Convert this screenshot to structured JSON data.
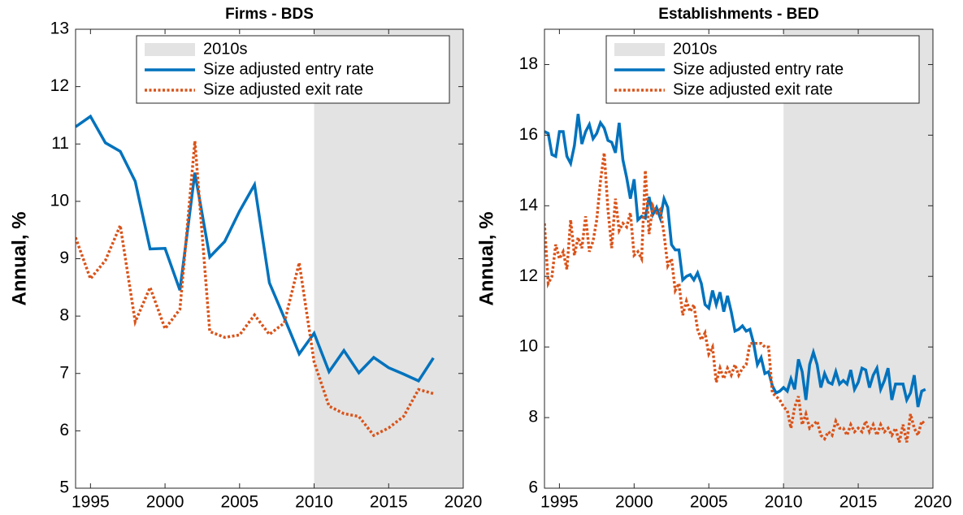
{
  "chart_data": [
    {
      "type": "line",
      "title": "Firms - BDS",
      "ylabel": "Annual, %",
      "xlim": [
        1994,
        2020
      ],
      "xticks": [
        1995,
        2000,
        2005,
        2010,
        2015,
        2020
      ],
      "ylim": [
        5,
        13
      ],
      "yticks": [
        5,
        6,
        7,
        8,
        9,
        10,
        11,
        12,
        13
      ],
      "shade": {
        "name": "2010s",
        "range": [
          2010,
          2020
        ],
        "color": "#e3e3e3"
      },
      "legend": "top-right",
      "x": [
        1994,
        1995,
        1996,
        1997,
        1998,
        1999,
        2000,
        2001,
        2002,
        2003,
        2004,
        2005,
        2006,
        2007,
        2008,
        2009,
        2010,
        2011,
        2012,
        2013,
        2014,
        2015,
        2016,
        2017,
        2018
      ],
      "series": [
        {
          "name": "Size adjusted entry rate",
          "color": "#0072bd",
          "style": "solid",
          "values": [
            11.3,
            11.48,
            11.02,
            10.87,
            10.35,
            9.17,
            9.18,
            8.45,
            10.5,
            9.03,
            9.3,
            9.83,
            10.29,
            8.58,
            7.97,
            7.34,
            7.7,
            7.03,
            7.4,
            7.01,
            7.28,
            7.1,
            6.99,
            6.87,
            7.27
          ]
        },
        {
          "name": "Size adjusted exit rate",
          "color": "#d95319",
          "style": "dotted",
          "values": [
            9.37,
            8.65,
            8.97,
            9.58,
            7.9,
            8.5,
            7.78,
            8.12,
            11.05,
            7.73,
            7.63,
            7.67,
            8.02,
            7.68,
            7.88,
            8.93,
            7.2,
            6.43,
            6.3,
            6.25,
            5.92,
            6.05,
            6.25,
            6.72,
            6.65
          ]
        }
      ]
    },
    {
      "type": "line",
      "title": "Establishments - BED",
      "ylabel": "Annual, %",
      "xlim": [
        1994,
        2020
      ],
      "xticks": [
        1995,
        2000,
        2005,
        2010,
        2015,
        2020
      ],
      "ylim": [
        6,
        19
      ],
      "yticks": [
        6,
        8,
        10,
        12,
        14,
        16,
        18
      ],
      "shade": {
        "name": "2010s",
        "range": [
          2010,
          2020
        ],
        "color": "#e3e3e3"
      },
      "legend": "top-right",
      "x": [
        1994,
        1994.25,
        1994.5,
        1994.75,
        1995,
        1995.25,
        1995.5,
        1995.75,
        1996,
        1996.25,
        1996.5,
        1996.75,
        1997,
        1997.25,
        1997.5,
        1997.75,
        1998,
        1998.25,
        1998.5,
        1998.75,
        1999,
        1999.25,
        1999.5,
        1999.75,
        2000,
        2000.25,
        2000.5,
        2000.75,
        2001,
        2001.25,
        2001.5,
        2001.75,
        2002,
        2002.25,
        2002.5,
        2002.75,
        2003,
        2003.25,
        2003.5,
        2003.75,
        2004,
        2004.25,
        2004.5,
        2004.75,
        2005,
        2005.25,
        2005.5,
        2005.75,
        2006,
        2006.25,
        2006.5,
        2006.75,
        2007,
        2007.25,
        2007.5,
        2007.75,
        2008,
        2008.25,
        2008.5,
        2008.75,
        2009,
        2009.25,
        2009.5,
        2009.75,
        2010,
        2010.25,
        2010.5,
        2010.75,
        2011,
        2011.25,
        2011.5,
        2011.75,
        2012,
        2012.25,
        2012.5,
        2012.75,
        2013,
        2013.25,
        2013.5,
        2013.75,
        2014,
        2014.25,
        2014.5,
        2014.75,
        2015,
        2015.25,
        2015.5,
        2015.75,
        2016,
        2016.25,
        2016.5,
        2016.75,
        2017,
        2017.25,
        2017.5,
        2017.75,
        2018,
        2018.25,
        2018.5,
        2018.75,
        2019,
        2019.25,
        2019.5
      ],
      "series": [
        {
          "name": "Size adjusted entry rate",
          "color": "#0072bd",
          "style": "solid",
          "values": [
            16.1,
            16.05,
            15.45,
            15.4,
            16.1,
            16.1,
            15.4,
            15.2,
            15.7,
            16.6,
            15.75,
            16.1,
            16.3,
            15.9,
            16.05,
            16.35,
            16.2,
            15.85,
            15.8,
            15.5,
            16.35,
            15.3,
            14.8,
            14.2,
            14.75,
            13.6,
            13.7,
            13.65,
            14.25,
            13.75,
            13.95,
            13.65,
            14.2,
            13.95,
            12.9,
            12.75,
            12.75,
            11.9,
            12.0,
            12.05,
            11.9,
            12.1,
            11.8,
            11.2,
            11.1,
            11.6,
            11.2,
            11.55,
            11.0,
            11.45,
            11.0,
            10.45,
            10.5,
            10.6,
            10.45,
            10.5,
            10.1,
            9.5,
            9.7,
            9.25,
            9.3,
            8.9,
            8.7,
            8.75,
            8.85,
            8.75,
            9.1,
            8.8,
            9.65,
            9.3,
            8.5,
            9.5,
            9.85,
            9.5,
            8.85,
            9.25,
            9.0,
            8.95,
            9.3,
            8.95,
            9.05,
            8.95,
            9.35,
            8.8,
            9.0,
            9.4,
            9.35,
            8.85,
            9.2,
            9.4,
            8.8,
            9.05,
            9.4,
            8.5,
            8.95,
            8.95,
            8.95,
            8.5,
            8.7,
            9.2,
            8.3,
            8.75,
            8.8
          ]
        },
        {
          "name": "Size adjusted exit rate",
          "color": "#d95319",
          "style": "dotted",
          "values": [
            13.5,
            11.8,
            12.0,
            12.9,
            12.5,
            12.7,
            12.2,
            13.6,
            12.6,
            13.1,
            12.8,
            13.7,
            12.7,
            13.0,
            13.6,
            14.7,
            15.5,
            13.9,
            12.8,
            14.2,
            13.3,
            13.5,
            13.4,
            13.8,
            12.6,
            12.7,
            12.5,
            15.0,
            13.2,
            14.0,
            13.8,
            13.9,
            13.2,
            12.3,
            12.5,
            11.6,
            11.8,
            10.9,
            11.3,
            11.0,
            11.2,
            10.5,
            10.2,
            10.4,
            9.8,
            10.0,
            9.0,
            9.4,
            9.1,
            9.4,
            9.2,
            9.5,
            9.2,
            9.4,
            9.5,
            10.1,
            10.1,
            10.1,
            10.1,
            10.0,
            10.0,
            8.7,
            8.6,
            8.5,
            8.3,
            8.2,
            7.7,
            8.3,
            8.6,
            7.8,
            8.1,
            7.7,
            7.8,
            7.9,
            7.5,
            7.4,
            7.6,
            7.5,
            7.9,
            7.7,
            7.7,
            7.5,
            7.8,
            7.6,
            7.7,
            7.6,
            7.9,
            7.6,
            7.8,
            7.5,
            7.8,
            7.6,
            7.7,
            7.5,
            7.7,
            7.3,
            7.8,
            7.3,
            8.1,
            7.7,
            7.5,
            7.9,
            7.8
          ]
        }
      ]
    }
  ]
}
